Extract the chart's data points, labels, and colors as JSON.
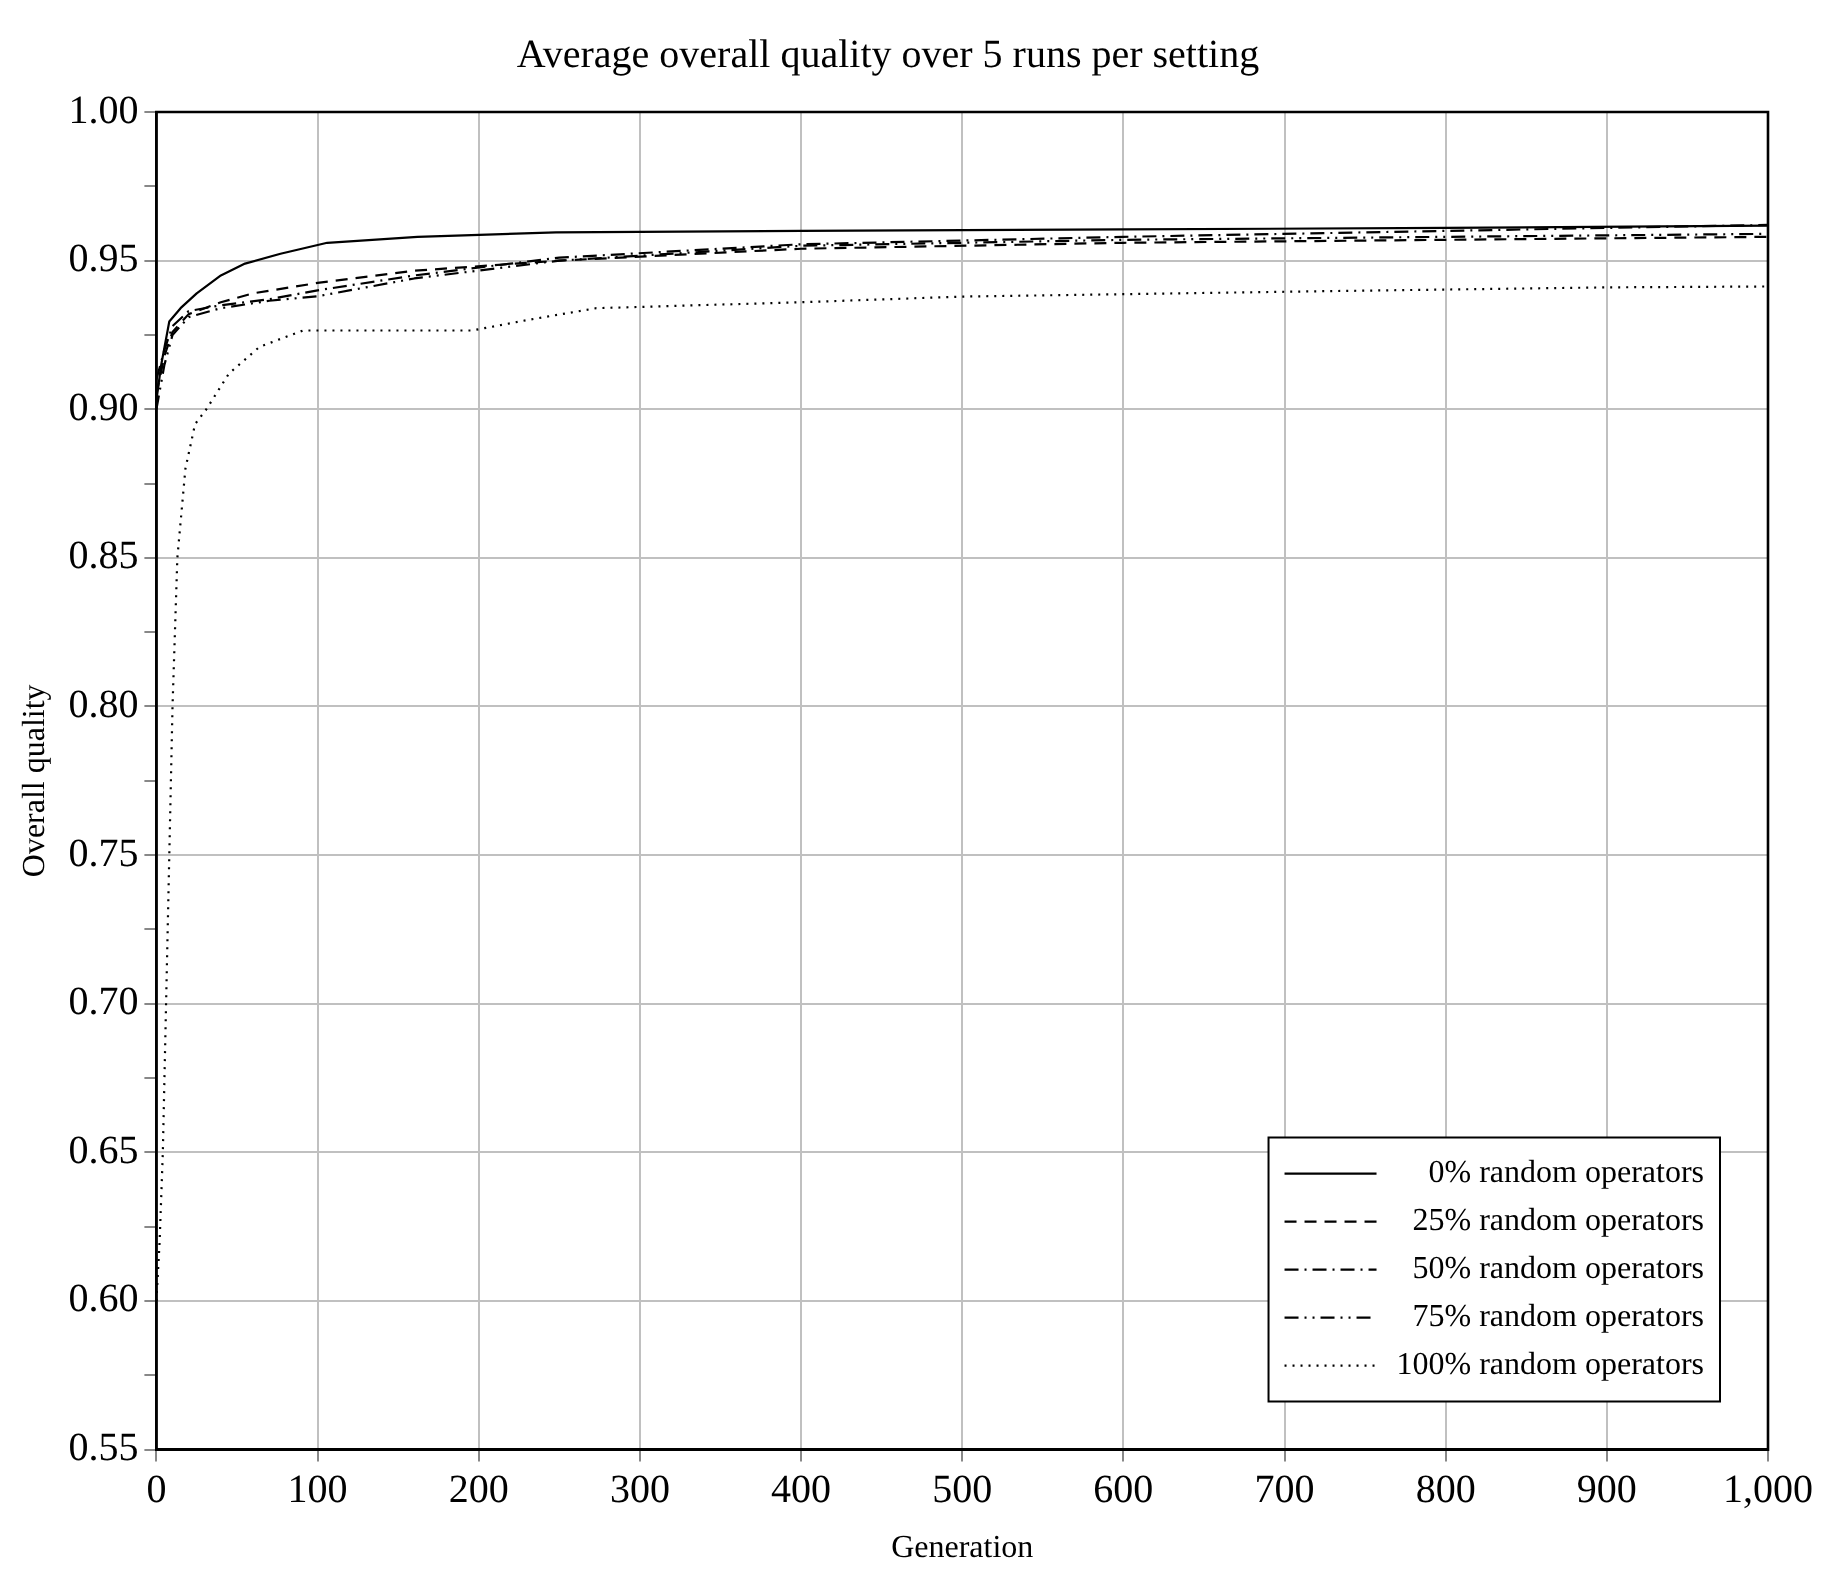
{
  "chart_data": {
    "type": "line",
    "title": "Average overall quality over 5 runs per setting",
    "xlabel": "Generation",
    "ylabel": "Overall quality",
    "xlim": [
      0,
      1000
    ],
    "xticks": [
      0,
      100,
      200,
      300,
      400,
      500,
      600,
      700,
      800,
      900,
      {
        "value": 1000,
        "label": "1,000"
      }
    ],
    "ylim": [
      0.55,
      1.0
    ],
    "yticks": [
      0.55,
      {
        "value": 0.575,
        "label": null
      },
      {
        "value": 0.6,
        "label": "0.60"
      },
      {
        "value": 0.625,
        "label": null
      },
      0.65,
      {
        "value": 0.675,
        "label": null
      },
      {
        "value": 0.7,
        "label": "0.70"
      },
      {
        "value": 0.725,
        "label": null
      },
      0.75,
      {
        "value": 0.775,
        "label": null
      },
      {
        "value": 0.8,
        "label": "0.80"
      },
      {
        "value": 0.825,
        "label": null
      },
      0.85,
      {
        "value": 0.875,
        "label": null
      },
      {
        "value": 0.9,
        "label": "0.90"
      },
      {
        "value": 0.925,
        "label": null
      },
      0.95,
      {
        "value": 0.975,
        "label": null
      },
      {
        "value": 1.0,
        "label": "1.00"
      }
    ],
    "grid": true,
    "legend": "bottom right",
    "marker": "none",
    "series": [
      {
        "name": "0% random operators",
        "color": "#000000",
        "line_style": "solid",
        "x": [
          0,
          3,
          8,
          15,
          25,
          40,
          55,
          77,
          106,
          162,
          248,
          400,
          600,
          800,
          1000
        ],
        "values": [
          0.903,
          0.915,
          0.9295,
          0.934,
          0.939,
          0.945,
          0.949,
          0.9523,
          0.956,
          0.958,
          0.9595,
          0.96,
          0.9605,
          0.961,
          0.9618
        ]
      },
      {
        "name": "25% random operators",
        "color": "#000000",
        "line_style": "dashed",
        "x": [
          0,
          5,
          10,
          20,
          40,
          60,
          100,
          160,
          250,
          400,
          600,
          800,
          1000
        ],
        "values": [
          0.905,
          0.918,
          0.926,
          0.932,
          0.936,
          0.939,
          0.9425,
          0.9466,
          0.95,
          0.954,
          0.956,
          0.957,
          0.958
        ]
      },
      {
        "name": "50% random operators",
        "color": "#000000",
        "line_style": "dashdot",
        "x": [
          0,
          5,
          10,
          20,
          40,
          70,
          100,
          160,
          250,
          400,
          600,
          800,
          1000
        ],
        "values": [
          0.91,
          0.92,
          0.928,
          0.933,
          0.935,
          0.937,
          0.94,
          0.945,
          0.951,
          0.9555,
          0.958,
          0.96,
          0.962
        ]
      },
      {
        "name": "75% random operators",
        "color": "#000000",
        "line_style": "dashdotdot",
        "x": [
          0,
          5,
          10,
          20,
          40,
          70,
          100,
          160,
          250,
          400,
          600,
          800,
          1000
        ],
        "values": [
          0.9,
          0.915,
          0.925,
          0.931,
          0.934,
          0.9365,
          0.938,
          0.944,
          0.95,
          0.955,
          0.957,
          0.958,
          0.959
        ]
      },
      {
        "name": "100% random operators",
        "color": "#000000",
        "line_style": "dotted",
        "x": [
          0,
          2,
          4,
          6,
          8,
          10,
          13,
          18,
          24,
          31,
          45,
          64,
          91,
          196,
          230,
          273,
          400,
          500,
          722,
          900,
          1000
        ],
        "values": [
          0.6,
          0.62,
          0.65,
          0.7,
          0.75,
          0.8,
          0.85,
          0.88,
          0.895,
          0.9,
          0.912,
          0.921,
          0.9265,
          0.9265,
          0.93,
          0.934,
          0.936,
          0.9379,
          0.9397,
          0.941,
          0.9413
        ]
      }
    ]
  }
}
